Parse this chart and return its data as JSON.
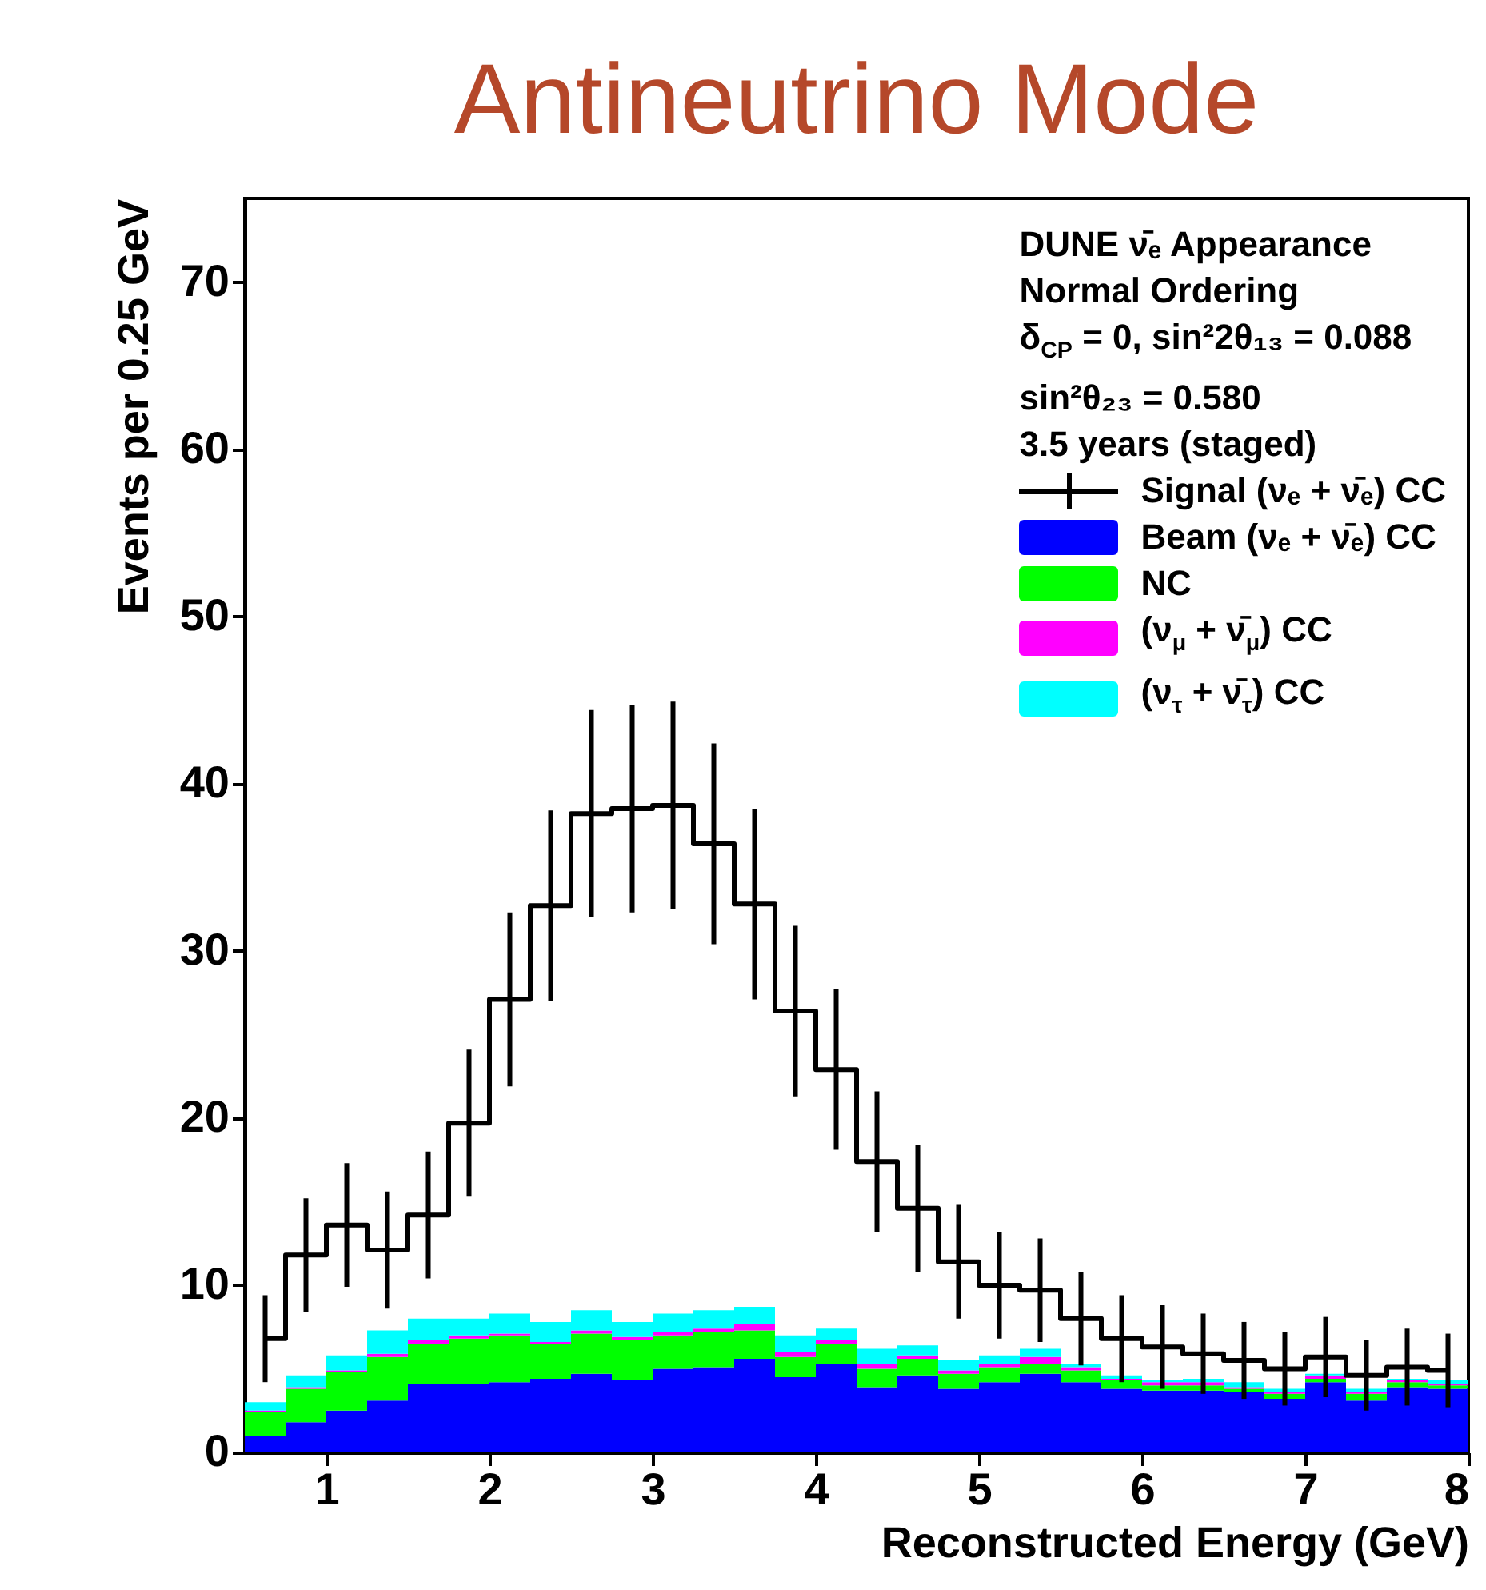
{
  "chart_data": {
    "type": "bar",
    "title": "Antineutrino Mode",
    "xlabel": "Reconstructed Energy (GeV)",
    "ylabel": "Events per 0.25 GeV",
    "annotations": [
      "DUNE ν̄ₑ Appearance",
      "Normal Ordering",
      "δ$_{CP}$ = 0, sin²2θ₁₃ = 0.088",
      "sin²θ₂₃ = 0.580",
      "3.5 years (staged)"
    ],
    "x": [
      0.625,
      0.875,
      1.125,
      1.375,
      1.625,
      1.875,
      2.125,
      2.375,
      2.625,
      2.875,
      3.125,
      3.375,
      3.625,
      3.875,
      4.125,
      4.375,
      4.625,
      4.875,
      5.125,
      5.375,
      5.625,
      5.875,
      6.125,
      6.375,
      6.625,
      6.875,
      7.125,
      7.375,
      7.625,
      7.875
    ],
    "xlim": [
      0.5,
      8
    ],
    "xticks": [
      1,
      2,
      3,
      4,
      5,
      6,
      7,
      8
    ],
    "ylim": [
      0,
      75
    ],
    "yticks": [
      0,
      10,
      20,
      30,
      40,
      50,
      60,
      70
    ],
    "stacked": true,
    "legend": "top right",
    "series": [
      {
        "name": "Signal (νₑ + ν̄ₑ) CC",
        "type": "step",
        "color": "#000000",
        "values": [
          6.8,
          11.8,
          13.6,
          12.1,
          14.2,
          19.7,
          27.1,
          32.7,
          38.2,
          38.5,
          38.7,
          36.4,
          32.8,
          26.4,
          22.9,
          17.4,
          14.6,
          11.4,
          10.0,
          9.7,
          8.0,
          6.8,
          6.3,
          5.9,
          5.5,
          5.0,
          5.7,
          4.6,
          5.1,
          4.9
        ],
        "errors": [
          2.6,
          3.4,
          3.7,
          3.5,
          3.8,
          4.4,
          5.2,
          5.7,
          6.2,
          6.2,
          6.2,
          6.0,
          5.7,
          5.1,
          4.8,
          4.2,
          3.8,
          3.4,
          3.2,
          3.1,
          2.8,
          2.6,
          2.5,
          2.4,
          2.3,
          2.2,
          2.4,
          2.1,
          2.3,
          2.2
        ]
      },
      {
        "name": "Beam (νₑ + ν̄ₑ) CC",
        "color": "#0000ff",
        "values": [
          1.0,
          1.8,
          2.5,
          3.1,
          4.1,
          4.1,
          4.2,
          4.4,
          4.7,
          4.3,
          5.0,
          5.1,
          5.6,
          4.5,
          5.3,
          3.9,
          4.6,
          3.8,
          4.2,
          4.7,
          4.2,
          3.8,
          3.7,
          3.7,
          3.6,
          3.2,
          4.2,
          3.1,
          3.9,
          3.8
        ]
      },
      {
        "name": "NC",
        "color": "#00ff00",
        "values": [
          1.4,
          2.0,
          2.3,
          2.6,
          2.4,
          2.7,
          2.8,
          2.1,
          2.4,
          2.4,
          2.0,
          2.1,
          1.7,
          1.2,
          1.2,
          1.1,
          1.0,
          0.9,
          0.9,
          0.6,
          0.7,
          0.5,
          0.3,
          0.3,
          0.2,
          0.3,
          0.2,
          0.4,
          0.3,
          0.2
        ]
      },
      {
        "name": "(ν$_{μ}$ + ν̄$_{μ}$) CC",
        "color": "#ff00ff",
        "values": [
          0.1,
          0.1,
          0.1,
          0.2,
          0.2,
          0.2,
          0.1,
          0.1,
          0.2,
          0.2,
          0.2,
          0.2,
          0.4,
          0.3,
          0.2,
          0.3,
          0.2,
          0.2,
          0.2,
          0.4,
          0.2,
          0.1,
          0.2,
          0.2,
          0.1,
          0.1,
          0.2,
          0.1,
          0.1,
          0.1
        ]
      },
      {
        "name": "(ν$_{τ}$ + ν̄$_{τ}$) CC",
        "color": "#00ffff",
        "values": [
          0.5,
          0.7,
          0.9,
          1.4,
          1.3,
          1.0,
          1.2,
          1.2,
          1.2,
          0.9,
          1.1,
          1.1,
          1.0,
          1.0,
          0.7,
          0.9,
          0.6,
          0.6,
          0.5,
          0.5,
          0.2,
          0.2,
          0.1,
          0.2,
          0.3,
          0.2,
          0.1,
          0.2,
          0.1,
          0.2
        ]
      }
    ]
  }
}
